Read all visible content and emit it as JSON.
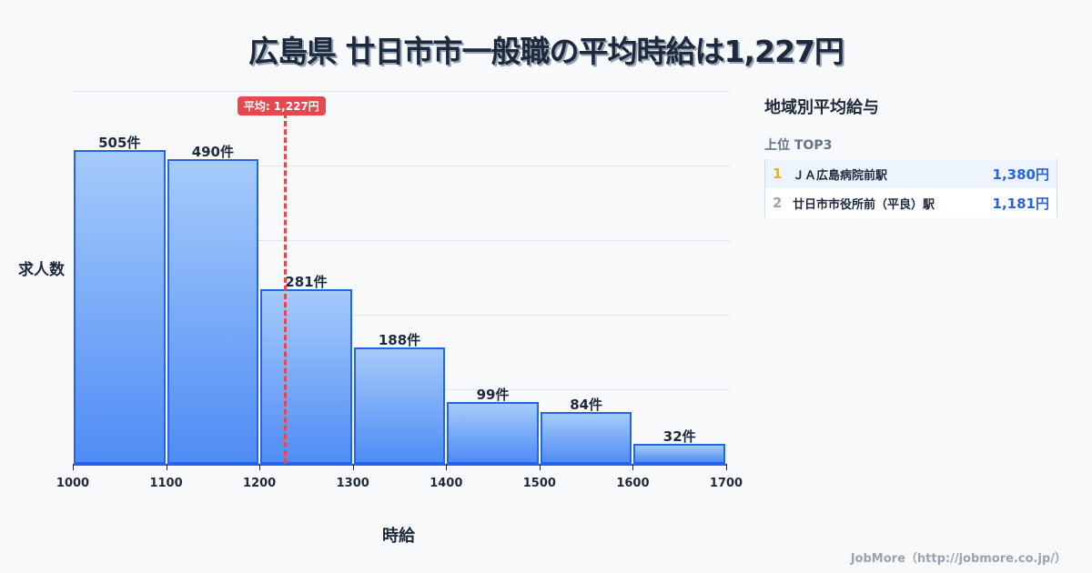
{
  "header": {
    "title": "広島県 廿日市市一般職の平均時給は1,227円"
  },
  "chart_data": {
    "type": "bar",
    "title": "広島県 廿日市市一般職の平均時給は1,227円",
    "xlabel": "時給",
    "ylabel": "求人数",
    "x_ticks": [
      "1000",
      "1100",
      "1200",
      "1300",
      "1400",
      "1500",
      "1600",
      "1700"
    ],
    "categories": [
      "1000-1100",
      "1100-1200",
      "1200-1300",
      "1300-1400",
      "1400-1500",
      "1500-1600",
      "1600-1700"
    ],
    "values": [
      505,
      490,
      281,
      188,
      99,
      84,
      32
    ],
    "value_labels": [
      "505件",
      "490件",
      "281件",
      "188件",
      "99件",
      "84件",
      "32件"
    ],
    "ylim": [
      0,
      600
    ],
    "grid": true,
    "average": {
      "value": 1227,
      "label": "平均: 1,227円"
    }
  },
  "sidebar": {
    "title": "地域別平均給与",
    "subtitle": "上位 TOP3",
    "items": [
      {
        "rank": "1",
        "name": "ＪＡ広島病院前駅",
        "value": "1,380円",
        "rank_color": "#eab308"
      },
      {
        "rank": "2",
        "name": "廿日市市役所前（平良）駅",
        "value": "1,181円",
        "rank_color": "#9ca3af"
      }
    ]
  },
  "footer": {
    "credit": "JobMore（http://jobmore.co.jp/）"
  }
}
